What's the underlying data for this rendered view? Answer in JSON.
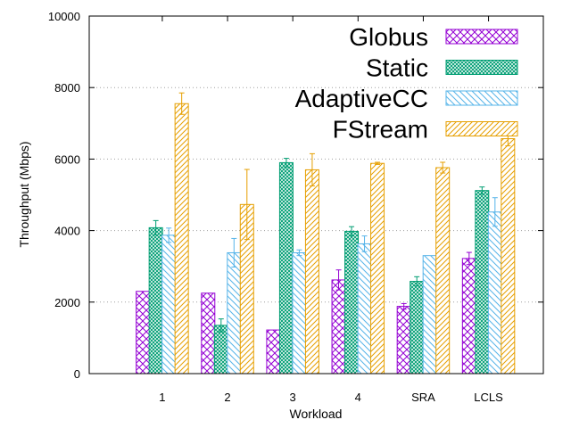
{
  "chart_data": {
    "type": "bar",
    "xlabel": "Workload",
    "ylabel": "Throughput (Mbps)",
    "ylim": [
      0,
      10000
    ],
    "yticks": [
      0,
      2000,
      4000,
      6000,
      8000,
      10000
    ],
    "grid": "horizontal dotted",
    "legend_position": "top-right",
    "categories": [
      "1",
      "2",
      "3",
      "4",
      "SRA",
      "LCLS"
    ],
    "series": [
      {
        "name": "Globus",
        "color": "#9400d3",
        "pattern": "crosshatch",
        "values": [
          2300,
          2250,
          1220,
          2620,
          1880,
          3220
        ],
        "errors": [
          0,
          0,
          0,
          280,
          80,
          170
        ]
      },
      {
        "name": "Static",
        "color": "#009e73",
        "pattern": "dense-crosshatch",
        "values": [
          4080,
          1350,
          5900,
          3980,
          2580,
          5120
        ],
        "errors": [
          200,
          180,
          120,
          130,
          130,
          100
        ]
      },
      {
        "name": "AdaptiveCC",
        "color": "#56b4e9",
        "pattern": "back-diagonal",
        "values": [
          3870,
          3380,
          3380,
          3630,
          3300,
          4520
        ],
        "errors": [
          200,
          400,
          80,
          220,
          0,
          400
        ]
      },
      {
        "name": "FStream",
        "color": "#e69f00",
        "pattern": "forward-diagonal",
        "values": [
          7550,
          4730,
          5700,
          5880,
          5760,
          6570
        ],
        "errors": [
          300,
          980,
          450,
          30,
          150,
          200
        ]
      }
    ]
  }
}
